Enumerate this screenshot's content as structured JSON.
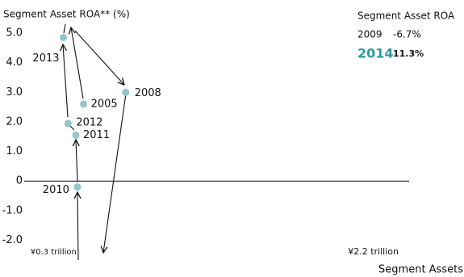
{
  "chart_data": {
    "type": "scatter",
    "connected": true,
    "title": "Segment Asset ROA** (%)",
    "x_label": "Segment Assets",
    "point_color": "#94c5cb",
    "series": [
      {
        "name": null,
        "x": [
          0.34,
          0.61,
          0.3,
          0.29,
          0.24,
          0.21
        ],
        "values": [
          2.6,
          3.0,
          -0.2,
          1.55,
          1.95,
          4.85
        ],
        "labels": [
          "2005",
          "2008",
          "2010",
          "2011",
          "2012",
          "2013"
        ]
      }
    ],
    "xlim": [
      0,
      2.5
    ],
    "xticks": [
      {
        "value": 0.3,
        "label": "¥0.3 trillion"
      },
      {
        "value": 2.2,
        "label": "¥2.2 trillion"
      }
    ],
    "ylim": [
      -2.0,
      5.0
    ],
    "yticks": [
      {
        "value": 5,
        "label": "5.0"
      },
      {
        "value": 4,
        "label": "4.0"
      },
      {
        "value": 3,
        "label": "3.0"
      },
      {
        "value": 2,
        "label": "2.0"
      },
      {
        "value": 1,
        "label": "1.0"
      },
      0,
      {
        "value": -1,
        "label": "-1.0"
      },
      {
        "value": -2,
        "label": "-2.0"
      }
    ],
    "callout": {
      "title": "Segment Asset ROA",
      "rows": [
        {
          "year": "2009",
          "value": "-6.7%"
        },
        {
          "year": "2014",
          "value": "11.3%"
        }
      ]
    }
  }
}
